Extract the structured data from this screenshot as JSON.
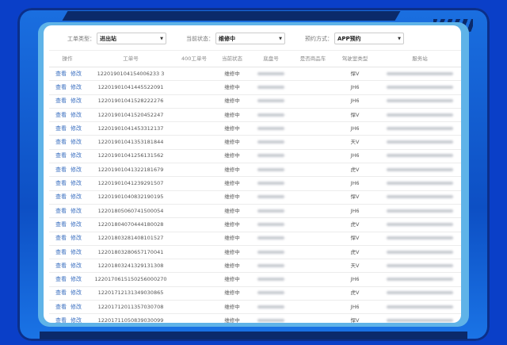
{
  "filters": [
    {
      "label": "工单类型：",
      "value": "进出站"
    },
    {
      "label": "当前状态：",
      "value": "维修中"
    },
    {
      "label": "预约方式：",
      "value": "APP预约"
    }
  ],
  "columns": [
    "操作",
    "工单号",
    "400工单号",
    "当前状态",
    "底盘号",
    "是否商品车",
    "驾驶室类型",
    "服务站"
  ],
  "actions": {
    "view": "查看",
    "edit": "修改"
  },
  "rows": [
    {
      "id": "1220190104154006233 3",
      "status": "维修中",
      "cab": "悍V"
    },
    {
      "id": "12201901041445522091",
      "status": "维修中",
      "cab": "JH6"
    },
    {
      "id": "12201901041528222276",
      "status": "维修中",
      "cab": "JH6"
    },
    {
      "id": "12201901041520452247",
      "status": "维修中",
      "cab": "悍V"
    },
    {
      "id": "12201901041453312137",
      "status": "维修中",
      "cab": "JH6"
    },
    {
      "id": "12201901041353181844",
      "status": "维修中",
      "cab": "天V"
    },
    {
      "id": "12201901041256131562",
      "status": "维修中",
      "cab": "JH6"
    },
    {
      "id": "12201901041322181679",
      "status": "维修中",
      "cab": "虎V"
    },
    {
      "id": "12201901041239291507",
      "status": "维修中",
      "cab": "JH6"
    },
    {
      "id": "12201901040832190195",
      "status": "维修中",
      "cab": "悍V"
    },
    {
      "id": "12201805060741500054",
      "status": "维修中",
      "cab": "JH6"
    },
    {
      "id": "12201804070444180028",
      "status": "维修中",
      "cab": "虎V"
    },
    {
      "id": "12201803281408101527",
      "status": "维修中",
      "cab": "悍V"
    },
    {
      "id": "12201803280657170041",
      "status": "维修中",
      "cab": "虎V"
    },
    {
      "id": "12201803241329131308",
      "status": "维修中",
      "cab": "天V"
    },
    {
      "id": "1220170615150256000270",
      "status": "维修中",
      "cab": "JH6"
    },
    {
      "id": "12201712131349030865",
      "status": "维修中",
      "cab": "虎V"
    },
    {
      "id": "12201712011357030708",
      "status": "维修中",
      "cab": "JH6"
    },
    {
      "id": "12201711050839030099",
      "status": "维修中",
      "cab": "悍V"
    }
  ]
}
